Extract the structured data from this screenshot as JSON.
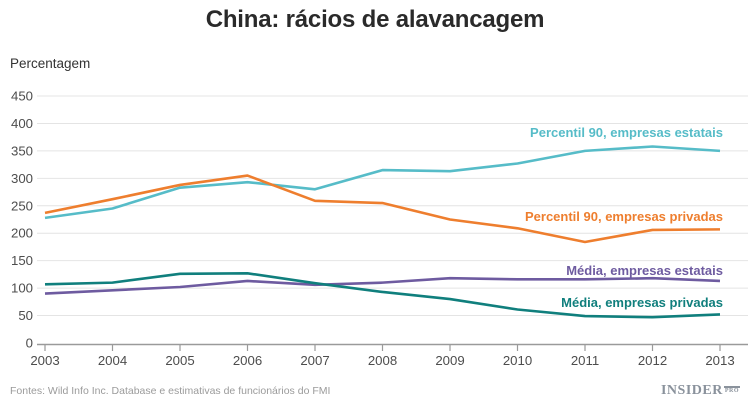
{
  "footer": {
    "source": "Fontes: Wild Info Inc. Database e estimativas de funcionários do FMI",
    "logo_text": "INSIDER",
    "logo_suffix": "PRO"
  },
  "chart_data": {
    "type": "line",
    "title": "China: rácios de alavancagem",
    "ylabel": "Percentagem",
    "xlabel": "",
    "x": [
      2003,
      2004,
      2005,
      2006,
      2007,
      2008,
      2009,
      2010,
      2011,
      2012,
      2013
    ],
    "ylim": [
      0,
      450
    ],
    "y_ticks": [
      0,
      50,
      100,
      150,
      200,
      250,
      300,
      350,
      400,
      450
    ],
    "grid": true,
    "legend_position": "inline-right-annotations",
    "series": [
      {
        "name": "Percentil 90, empresas estatais",
        "color": "#56BCC8",
        "values": [
          228,
          245,
          283,
          293,
          280,
          315,
          313,
          327,
          350,
          358,
          350
        ]
      },
      {
        "name": "Percentil 90, empresas privadas",
        "color": "#EE7E2E",
        "values": [
          237,
          262,
          288,
          305,
          259,
          255,
          225,
          209,
          184,
          206,
          207
        ]
      },
      {
        "name": "Média, empresas estatais",
        "color": "#6E5BA0",
        "values": [
          90,
          96,
          102,
          113,
          106,
          110,
          118,
          116,
          116,
          118,
          113
        ]
      },
      {
        "name": "Média, empresas privadas",
        "color": "#107F7D",
        "values": [
          107,
          110,
          126,
          127,
          109,
          93,
          80,
          61,
          49,
          47,
          52
        ]
      }
    ],
    "layout": {
      "grid_color": "#e4e4e4",
      "axis_color": "#9a9a9a",
      "tick_label_color": "#4d4d4d",
      "line_width": 2.6
    }
  }
}
